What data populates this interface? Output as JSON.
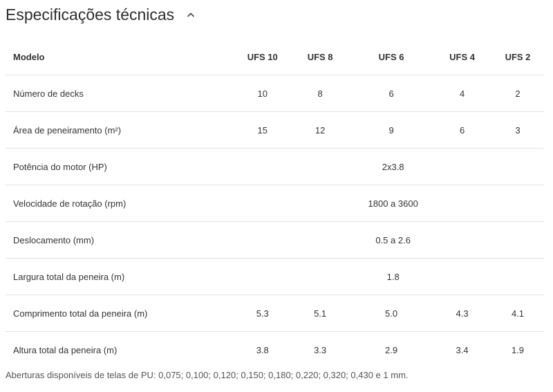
{
  "section": {
    "title": "Especificações técnicas",
    "toggle_icon": "chevron-up-icon"
  },
  "table": {
    "header": {
      "label": "Modelo",
      "models": [
        "UFS 10",
        "UFS 8",
        "UFS 6",
        "UFS 4",
        "UFS 2"
      ]
    },
    "rows": [
      {
        "label": "Número de decks",
        "values": [
          "10",
          "8",
          "6",
          "4",
          "2"
        ]
      },
      {
        "label": "Área de peneiramento (m²)",
        "values": [
          "15",
          "12",
          "9",
          "6",
          "3"
        ]
      },
      {
        "label": "Potência do motor (HP)",
        "shared_value": "2x3.8"
      },
      {
        "label": "Velocidade de rotação (rpm)",
        "shared_value": "1800 a 3600"
      },
      {
        "label": "Deslocamento (mm)",
        "shared_value": "0.5 a 2.6"
      },
      {
        "label": "Largura total da peneira (m)",
        "shared_value": "1.8"
      },
      {
        "label": "Comprimento total da peneira (m)",
        "values": [
          "5.3",
          "5.1",
          "5.0",
          "4.3",
          "4.1"
        ]
      },
      {
        "label": "Altura total da peneira (m)",
        "values": [
          "3.8",
          "3.3",
          "2.9",
          "3.4",
          "1.9"
        ]
      }
    ]
  },
  "footnote": "Aberturas disponíveis de telas  de PU: 0,075; 0,100; 0,120; 0,150; 0,180; 0,220; 0,320; 0,430 e 1 mm."
}
